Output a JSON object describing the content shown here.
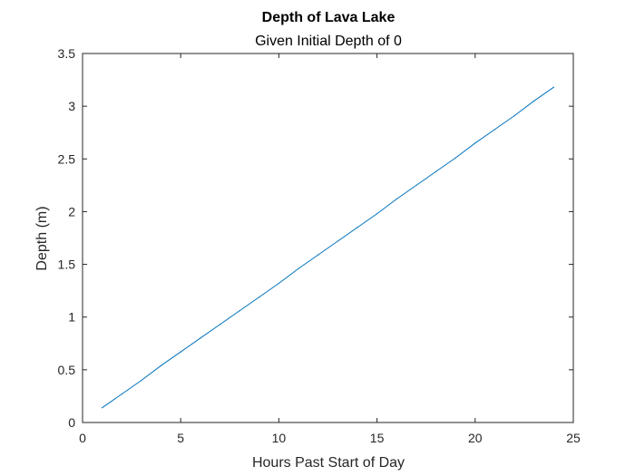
{
  "colors": {
    "background": "#ffffff",
    "axes": "#262626",
    "series_line": "#0072bd"
  },
  "chart_data": {
    "type": "line",
    "title": "Depth of Lava Lake",
    "subtitle": "Given Initial Depth of 0",
    "xlabel": "Hours Past Start of Day",
    "ylabel": "Depth (m)",
    "xlim": [
      0,
      25
    ],
    "ylim": [
      0,
      3.5
    ],
    "xticks": [
      "0",
      "5",
      "10",
      "15",
      "20",
      "25"
    ],
    "yticks": [
      "0",
      "0.5",
      "1",
      "1.5",
      "2",
      "2.5",
      "3",
      "3.5"
    ],
    "grid": false,
    "box": true,
    "series": [
      {
        "x": [
          1,
          2,
          3,
          4,
          5,
          6,
          7,
          8,
          9,
          10,
          11,
          12,
          13,
          14,
          15,
          16,
          17,
          18,
          19,
          20,
          21,
          22,
          23,
          24
        ],
        "y": [
          0.14,
          0.27,
          0.4,
          0.54,
          0.67,
          0.8,
          0.93,
          1.06,
          1.19,
          1.32,
          1.46,
          1.59,
          1.72,
          1.85,
          1.98,
          2.12,
          2.25,
          2.38,
          2.51,
          2.65,
          2.78,
          2.91,
          3.05,
          3.18
        ],
        "color": "#0072bd"
      }
    ]
  }
}
